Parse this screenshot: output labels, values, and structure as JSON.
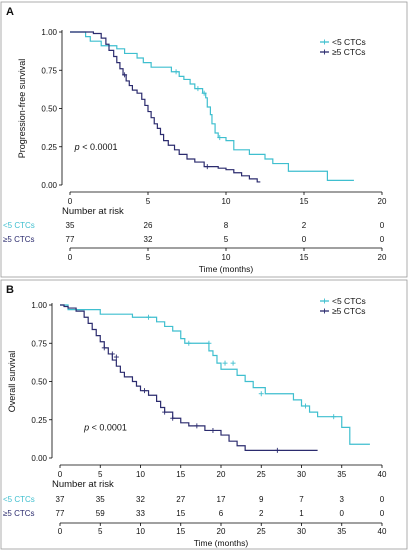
{
  "colors": {
    "low": "#3fbfcf",
    "high": "#2b2b6e",
    "axis": "#000000",
    "frame": "#999999"
  },
  "chart_data": [
    {
      "type": "line",
      "panel_label": "A",
      "ylabel": "Progression-free survival",
      "xlabel": "Time (months)",
      "xlim": [
        0,
        20
      ],
      "ylim": [
        0,
        1
      ],
      "xticks": [
        0,
        5,
        10,
        15,
        20
      ],
      "yticks": [
        0.0,
        0.25,
        0.5,
        0.75,
        1.0
      ],
      "ytick_labels": [
        "0.00",
        "0.25",
        "0.50",
        "0.75",
        "1.00"
      ],
      "legend_position": "top-right",
      "pvalue": {
        "label": "p",
        "text": " < 0.0001",
        "x": 0.3,
        "y": 0.23
      },
      "risk_title": "Number at risk",
      "series": [
        {
          "name": "<5 CTCs",
          "color_key": "low",
          "steps": [
            [
              0,
              1.0
            ],
            [
              1.0,
              0.97
            ],
            [
              1.3,
              0.94
            ],
            [
              2.0,
              0.91
            ],
            [
              3.0,
              0.89
            ],
            [
              3.5,
              0.86
            ],
            [
              4.3,
              0.83
            ],
            [
              4.7,
              0.8
            ],
            [
              5.2,
              0.77
            ],
            [
              6.5,
              0.74
            ],
            [
              7.0,
              0.71
            ],
            [
              7.3,
              0.69
            ],
            [
              7.7,
              0.66
            ],
            [
              8.0,
              0.63
            ],
            [
              8.5,
              0.6
            ],
            [
              8.7,
              0.57
            ],
            [
              8.8,
              0.51
            ],
            [
              9.0,
              0.46
            ],
            [
              9.1,
              0.4
            ],
            [
              9.3,
              0.34
            ],
            [
              9.5,
              0.31
            ],
            [
              10.0,
              0.29
            ],
            [
              10.5,
              0.23
            ],
            [
              11.5,
              0.2
            ],
            [
              12.5,
              0.17
            ],
            [
              13.0,
              0.14
            ],
            [
              14.0,
              0.09
            ],
            [
              16.5,
              0.03
            ],
            [
              18.2,
              0.03
            ]
          ],
          "censors": [
            [
              6.8,
              0.74
            ],
            [
              8.2,
              0.63
            ],
            [
              8.6,
              0.6
            ],
            [
              9.6,
              0.31
            ]
          ],
          "at_risk": [
            35,
            26,
            8,
            2,
            0
          ]
        },
        {
          "name": "≥5 CTCs",
          "color_key": "high",
          "steps": [
            [
              0,
              1.0
            ],
            [
              1.5,
              0.99
            ],
            [
              2.0,
              0.96
            ],
            [
              2.3,
              0.92
            ],
            [
              2.5,
              0.88
            ],
            [
              2.8,
              0.84
            ],
            [
              3.0,
              0.8
            ],
            [
              3.2,
              0.76
            ],
            [
              3.4,
              0.72
            ],
            [
              3.6,
              0.68
            ],
            [
              3.8,
              0.65
            ],
            [
              4.0,
              0.62
            ],
            [
              4.3,
              0.6
            ],
            [
              4.6,
              0.56
            ],
            [
              4.8,
              0.52
            ],
            [
              5.0,
              0.48
            ],
            [
              5.2,
              0.44
            ],
            [
              5.4,
              0.4
            ],
            [
              5.6,
              0.37
            ],
            [
              5.8,
              0.33
            ],
            [
              6.0,
              0.29
            ],
            [
              6.3,
              0.26
            ],
            [
              6.7,
              0.23
            ],
            [
              7.0,
              0.2
            ],
            [
              7.5,
              0.17
            ],
            [
              8.0,
              0.15
            ],
            [
              8.6,
              0.12
            ],
            [
              9.5,
              0.11
            ],
            [
              10.0,
              0.1
            ],
            [
              10.5,
              0.08
            ],
            [
              11.0,
              0.06
            ],
            [
              11.5,
              0.04
            ],
            [
              12.0,
              0.02
            ],
            [
              12.2,
              0.02
            ]
          ],
          "censors": [
            [
              3.5,
              0.72
            ],
            [
              8.8,
              0.12
            ]
          ],
          "at_risk": [
            77,
            32,
            5,
            0,
            0
          ]
        }
      ]
    },
    {
      "type": "line",
      "panel_label": "B",
      "ylabel": "Overall survival",
      "xlabel": "Time (months)",
      "xlim": [
        0,
        40
      ],
      "ylim": [
        0,
        1
      ],
      "xticks": [
        0,
        5,
        10,
        15,
        20,
        25,
        30,
        35,
        40
      ],
      "yticks": [
        0.0,
        0.25,
        0.5,
        0.75,
        1.0
      ],
      "ytick_labels": [
        "0.00",
        "0.25",
        "0.50",
        "0.75",
        "1.00"
      ],
      "legend_position": "top-right",
      "pvalue": {
        "label": "p",
        "text": " < 0.0001",
        "x": 3.0,
        "y": 0.18
      },
      "risk_title": "Number at risk",
      "series": [
        {
          "name": "<5 CTCs",
          "color_key": "low",
          "steps": [
            [
              0,
              1.0
            ],
            [
              1.0,
              0.97
            ],
            [
              5.0,
              0.94
            ],
            [
              9.0,
              0.92
            ],
            [
              12.0,
              0.89
            ],
            [
              13.0,
              0.86
            ],
            [
              14.0,
              0.83
            ],
            [
              15.0,
              0.78
            ],
            [
              15.5,
              0.75
            ],
            [
              18.5,
              0.7
            ],
            [
              19.0,
              0.67
            ],
            [
              19.5,
              0.62
            ],
            [
              20.0,
              0.58
            ],
            [
              22.0,
              0.54
            ],
            [
              23.0,
              0.5
            ],
            [
              24.0,
              0.46
            ],
            [
              25.5,
              0.42
            ],
            [
              29.0,
              0.38
            ],
            [
              30.0,
              0.34
            ],
            [
              31.0,
              0.3
            ],
            [
              32.0,
              0.27
            ],
            [
              35.0,
              0.2
            ],
            [
              36.0,
              0.09
            ],
            [
              38.5,
              0.09
            ]
          ],
          "censors": [
            [
              11.0,
              0.92
            ],
            [
              16.0,
              0.75
            ],
            [
              18.5,
              0.75
            ],
            [
              20.5,
              0.62
            ],
            [
              21.5,
              0.62
            ],
            [
              25.0,
              0.42
            ],
            [
              30.5,
              0.34
            ],
            [
              34.0,
              0.27
            ]
          ],
          "at_risk": [
            37,
            35,
            32,
            27,
            17,
            9,
            7,
            3,
            0
          ]
        },
        {
          "name": "≥5 CTCs",
          "color_key": "high",
          "steps": [
            [
              0,
              1.0
            ],
            [
              0.5,
              0.99
            ],
            [
              1.0,
              0.98
            ],
            [
              2.0,
              0.96
            ],
            [
              3.0,
              0.92
            ],
            [
              3.5,
              0.88
            ],
            [
              4.0,
              0.84
            ],
            [
              4.5,
              0.8
            ],
            [
              5.0,
              0.76
            ],
            [
              5.5,
              0.72
            ],
            [
              6.0,
              0.68
            ],
            [
              6.5,
              0.64
            ],
            [
              7.0,
              0.6
            ],
            [
              7.5,
              0.56
            ],
            [
              8.0,
              0.53
            ],
            [
              9.0,
              0.5
            ],
            [
              9.5,
              0.47
            ],
            [
              10.0,
              0.44
            ],
            [
              11.0,
              0.41
            ],
            [
              12.0,
              0.37
            ],
            [
              12.5,
              0.33
            ],
            [
              13.0,
              0.3
            ],
            [
              14.0,
              0.26
            ],
            [
              15.0,
              0.23
            ],
            [
              16.0,
              0.21
            ],
            [
              18.0,
              0.18
            ],
            [
              20.0,
              0.15
            ],
            [
              21.0,
              0.11
            ],
            [
              22.0,
              0.08
            ],
            [
              23.0,
              0.05
            ],
            [
              32.0,
              0.05
            ]
          ],
          "censors": [
            [
              5.5,
              0.72
            ],
            [
              6.5,
              0.68
            ],
            [
              7.0,
              0.66
            ],
            [
              10.5,
              0.44
            ],
            [
              13.0,
              0.3
            ],
            [
              14.0,
              0.26
            ],
            [
              17.0,
              0.21
            ],
            [
              19.0,
              0.18
            ],
            [
              27.0,
              0.05
            ]
          ],
          "at_risk": [
            77,
            59,
            33,
            15,
            6,
            2,
            1,
            0,
            0
          ]
        }
      ]
    }
  ]
}
